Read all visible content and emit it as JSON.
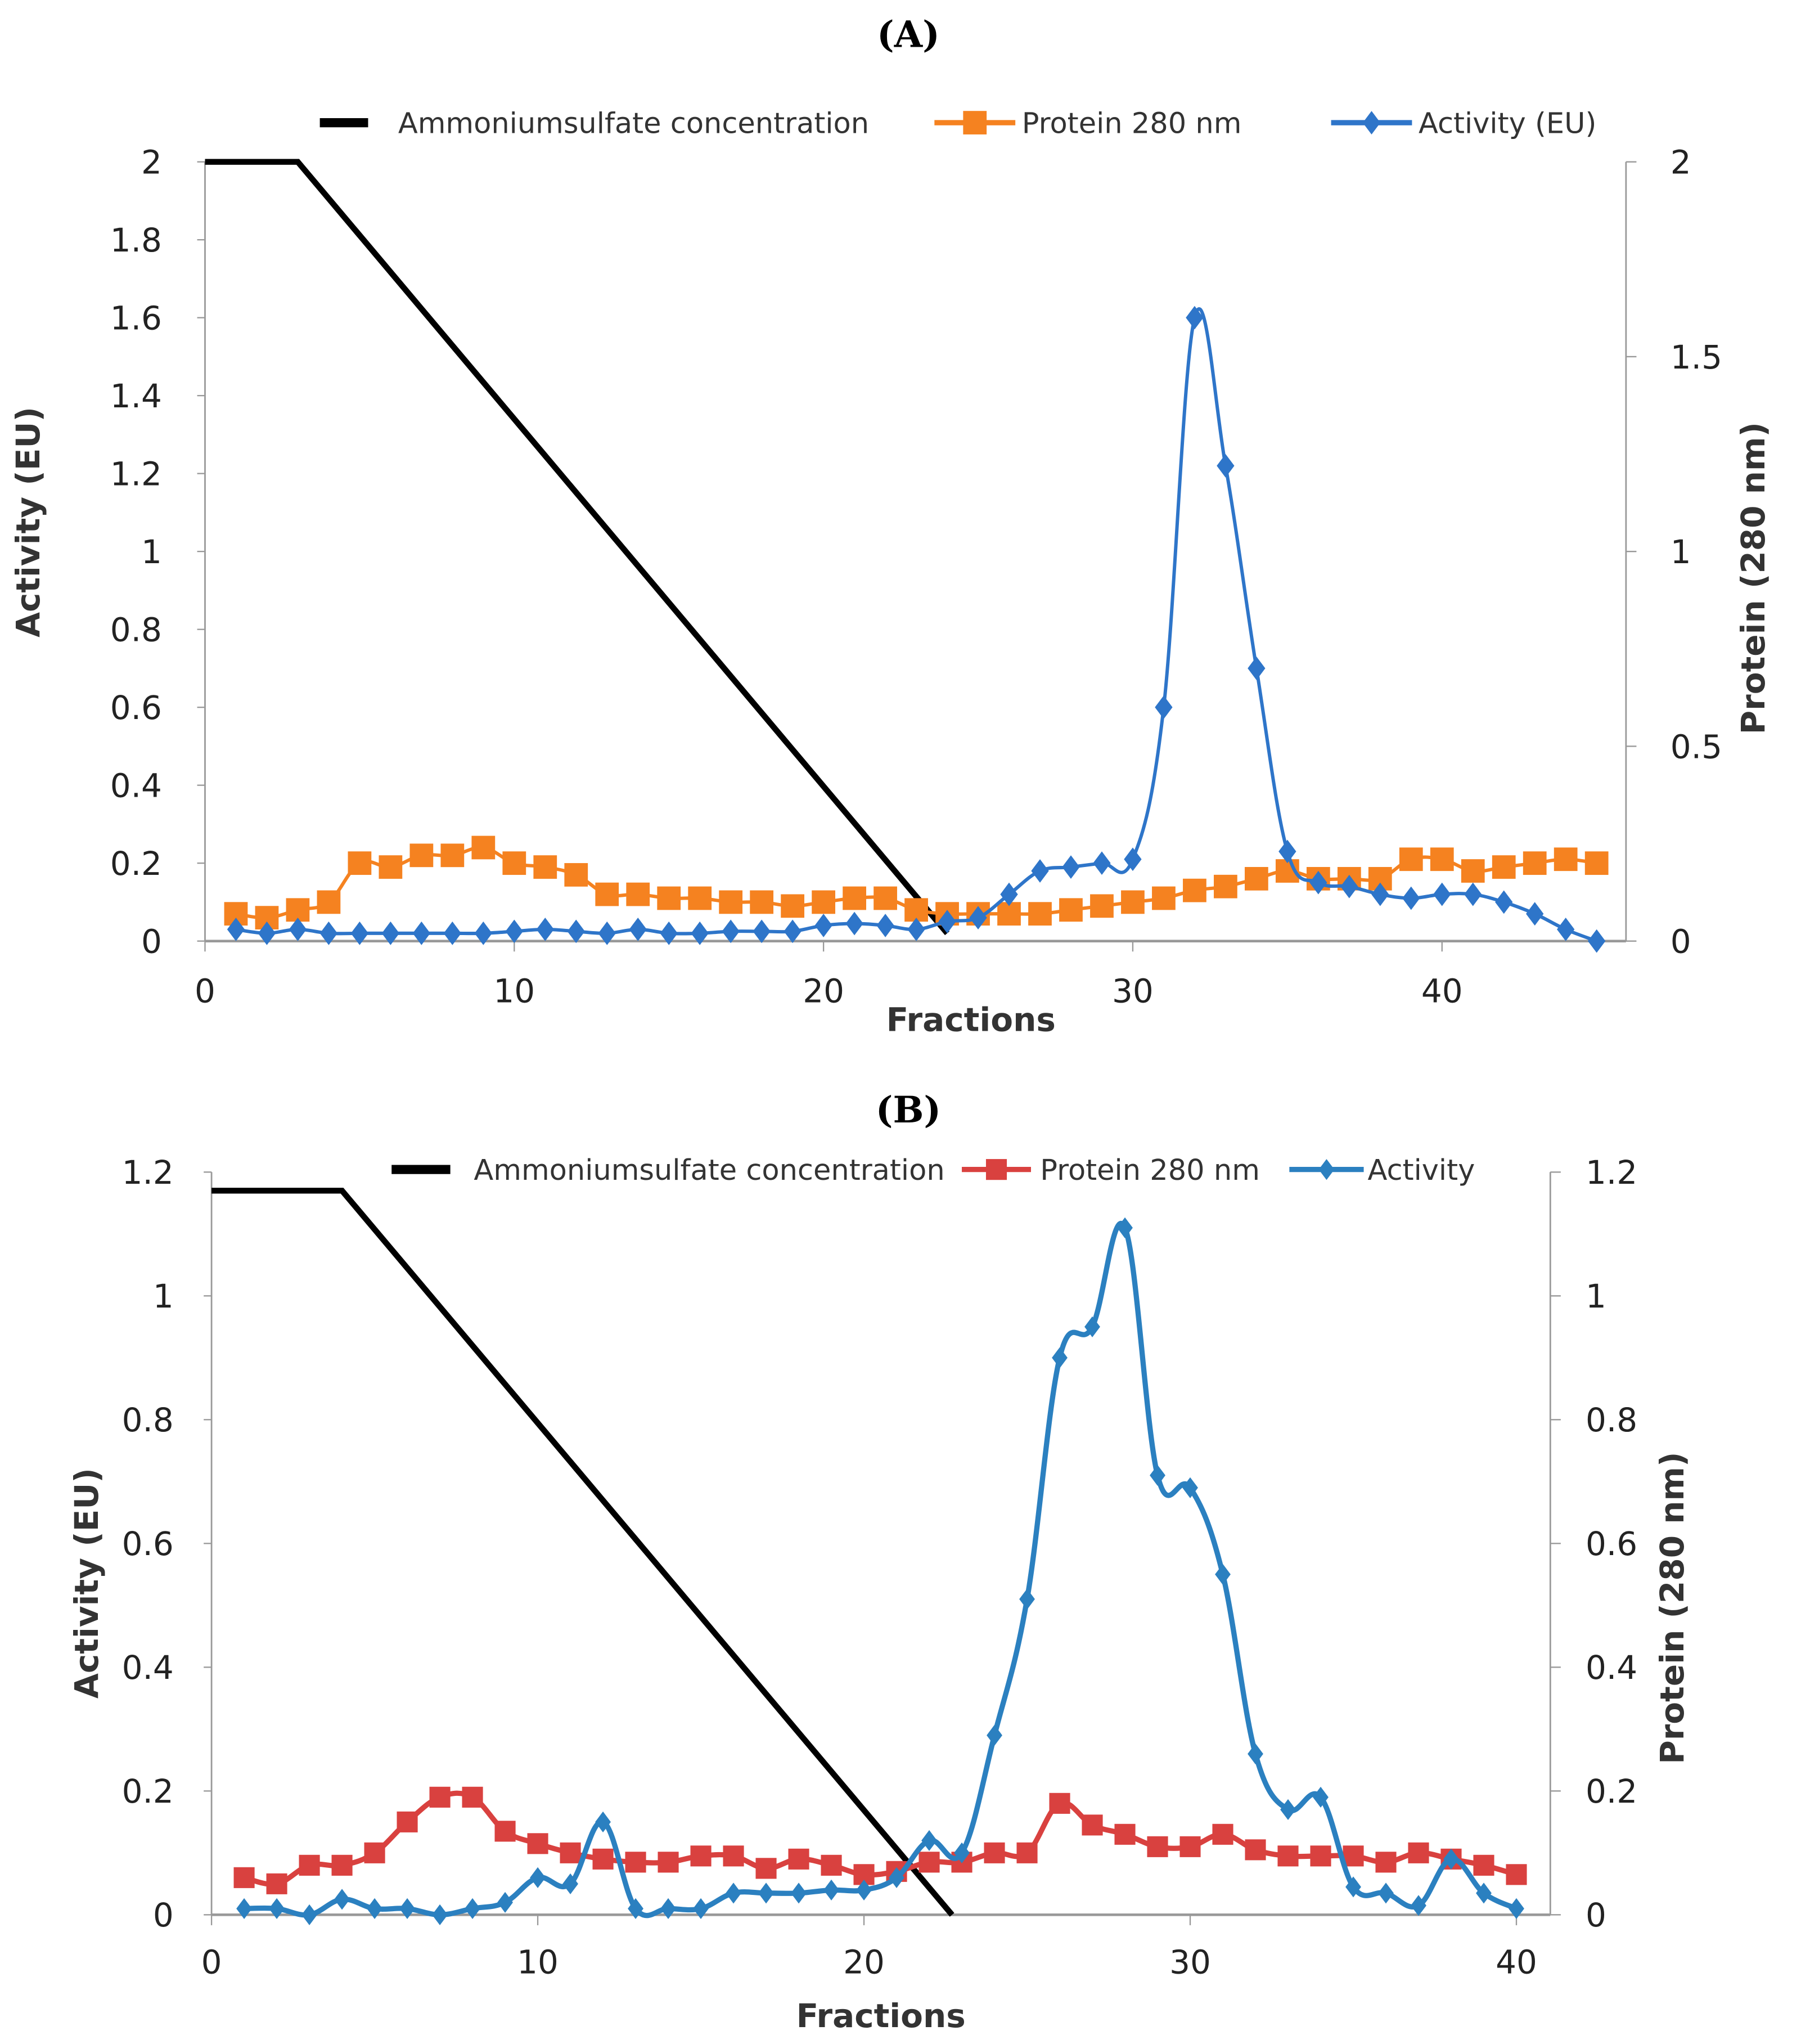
{
  "chart_data": [
    {
      "panel_label": "(A)",
      "type": "line",
      "xlabel": "Fractions",
      "ylabel": "Activity (EU)",
      "y2label": "Protein (280 nm)",
      "xlim": [
        0,
        46
      ],
      "ylim": [
        0,
        2
      ],
      "y2lim": [
        0,
        2
      ],
      "xticks": [
        0,
        10,
        20,
        30,
        40
      ],
      "yticks": [
        0,
        0.2,
        0.4,
        0.6,
        0.8,
        1,
        1.2,
        1.4,
        1.6,
        1.8,
        2
      ],
      "ytick_labels": [
        "0",
        "0.2",
        "0.4",
        "0.6",
        "0.8",
        "1",
        "1.2",
        "1.4",
        "1.6",
        "1.8",
        "2"
      ],
      "y2ticks": [
        0,
        0.5,
        1,
        1.5,
        2
      ],
      "y2tick_labels": [
        "0",
        "0.5",
        "1",
        "1.5",
        "2"
      ],
      "legend_position": "top",
      "series": [
        {
          "name": "Ammoniumsulfate concentration",
          "color": "#000000",
          "marker": "none",
          "axis": "left",
          "x": [
            0,
            3,
            24
          ],
          "y": [
            2,
            2,
            0.02
          ]
        },
        {
          "name": "Protein 280 nm",
          "color": "#F58220",
          "marker": "square",
          "axis": "right",
          "x": [
            1,
            2,
            3,
            4,
            5,
            6,
            7,
            8,
            9,
            10,
            11,
            12,
            13,
            14,
            15,
            16,
            17,
            18,
            19,
            20,
            21,
            22,
            23,
            24,
            25,
            26,
            27,
            28,
            29,
            30,
            31,
            32,
            33,
            34,
            35,
            36,
            37,
            38,
            39,
            40,
            41,
            42,
            43,
            44,
            45
          ],
          "y": [
            0.07,
            0.06,
            0.08,
            0.1,
            0.2,
            0.19,
            0.22,
            0.22,
            0.24,
            0.2,
            0.19,
            0.17,
            0.12,
            0.12,
            0.11,
            0.11,
            0.1,
            0.1,
            0.09,
            0.1,
            0.11,
            0.11,
            0.08,
            0.07,
            0.07,
            0.07,
            0.07,
            0.08,
            0.09,
            0.1,
            0.11,
            0.13,
            0.14,
            0.16,
            0.18,
            0.16,
            0.16,
            0.16,
            0.21,
            0.21,
            0.18,
            0.19,
            0.2,
            0.21,
            0.2
          ]
        },
        {
          "name": "Activity (EU)",
          "color": "#2E75C9",
          "marker": "diamond",
          "axis": "left",
          "x": [
            1,
            2,
            3,
            4,
            5,
            6,
            7,
            8,
            9,
            10,
            11,
            12,
            13,
            14,
            15,
            16,
            17,
            18,
            19,
            20,
            21,
            22,
            23,
            24,
            25,
            26,
            27,
            28,
            29,
            30,
            31,
            32,
            33,
            34,
            35,
            36,
            37,
            38,
            39,
            40,
            41,
            42,
            43,
            44,
            45
          ],
          "y": [
            0.03,
            0.02,
            0.03,
            0.02,
            0.02,
            0.02,
            0.02,
            0.02,
            0.02,
            0.025,
            0.03,
            0.025,
            0.02,
            0.03,
            0.02,
            0.02,
            0.025,
            0.025,
            0.025,
            0.04,
            0.045,
            0.04,
            0.03,
            0.05,
            0.06,
            0.12,
            0.18,
            0.19,
            0.2,
            0.21,
            0.6,
            1.6,
            1.22,
            0.7,
            0.23,
            0.15,
            0.14,
            0.12,
            0.11,
            0.12,
            0.12,
            0.1,
            0.07,
            0.03,
            0.0
          ]
        }
      ]
    },
    {
      "panel_label": "(B)",
      "type": "line",
      "xlabel": "Fractions",
      "ylabel": "Activity (EU)",
      "y2label": "Protein (280 nm)",
      "xlim": [
        0,
        41
      ],
      "ylim": [
        0,
        1.2
      ],
      "y2lim": [
        0,
        1.2
      ],
      "xticks": [
        0,
        10,
        20,
        30,
        40
      ],
      "yticks": [
        0,
        0.2,
        0.4,
        0.6,
        0.8,
        1,
        1.2
      ],
      "ytick_labels": [
        "0",
        "0.2",
        "0.4",
        "0.6",
        "0.8",
        "1",
        "1.2"
      ],
      "y2ticks": [
        0,
        0.2,
        0.4,
        0.6,
        0.8,
        1,
        1.2
      ],
      "y2tick_labels": [
        "0",
        "0.2",
        "0.4",
        "0.6",
        "0.8",
        "1",
        "1.2"
      ],
      "legend_position": "top",
      "series": [
        {
          "name": "Ammoniumsulfate concentration",
          "color": "#000000",
          "marker": "none",
          "axis": "left",
          "x": [
            0,
            4,
            22.7
          ],
          "y": [
            1.17,
            1.17,
            0
          ]
        },
        {
          "name": "Protein 280 nm",
          "color": "#D9413F",
          "marker": "square",
          "axis": "right",
          "x": [
            1,
            2,
            3,
            4,
            5,
            6,
            7,
            8,
            9,
            10,
            11,
            12,
            13,
            14,
            15,
            16,
            17,
            18,
            19,
            20,
            21,
            22,
            23,
            24,
            25,
            26,
            27,
            28,
            29,
            30,
            31,
            32,
            33,
            34,
            35,
            36,
            37,
            38,
            39,
            40
          ],
          "y": [
            0.06,
            0.05,
            0.08,
            0.08,
            0.1,
            0.15,
            0.19,
            0.19,
            0.135,
            0.115,
            0.1,
            0.09,
            0.085,
            0.085,
            0.095,
            0.095,
            0.075,
            0.09,
            0.08,
            0.065,
            0.07,
            0.085,
            0.085,
            0.1,
            0.1,
            0.18,
            0.145,
            0.13,
            0.11,
            0.11,
            0.13,
            0.105,
            0.095,
            0.095,
            0.095,
            0.085,
            0.1,
            0.09,
            0.08,
            0.065
          ]
        },
        {
          "name": "Activity",
          "color": "#2B80C0",
          "marker": "diamond",
          "axis": "left",
          "x": [
            1,
            2,
            3,
            4,
            5,
            6,
            7,
            8,
            9,
            10,
            11,
            12,
            13,
            14,
            15,
            16,
            17,
            18,
            19,
            20,
            21,
            22,
            23,
            24,
            25,
            26,
            27,
            28,
            29,
            30,
            31,
            32,
            33,
            34,
            35,
            36,
            37,
            38,
            39,
            40
          ],
          "y": [
            0.01,
            0.01,
            0.0,
            0.025,
            0.01,
            0.01,
            0.0,
            0.01,
            0.02,
            0.06,
            0.05,
            0.15,
            0.01,
            0.01,
            0.01,
            0.035,
            0.035,
            0.035,
            0.04,
            0.04,
            0.06,
            0.12,
            0.1,
            0.29,
            0.51,
            0.9,
            0.95,
            1.11,
            0.71,
            0.69,
            0.55,
            0.26,
            0.17,
            0.19,
            0.045,
            0.035,
            0.015,
            0.09,
            0.035,
            0.01
          ]
        }
      ]
    }
  ]
}
